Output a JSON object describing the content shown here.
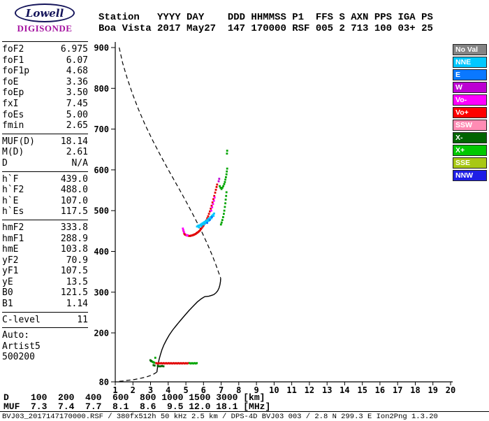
{
  "logo": {
    "name": "Lowell",
    "product": "DIGISONDE",
    "accent_color": "#a512a0"
  },
  "header": {
    "line1": "Station   YYYY DAY    DDD HHMMSS P1  FFS S AXN PPS IGA PS",
    "line2": "Boa Vista 2017 May27  147 170000 RSF 005 2 713 100 03+ 25"
  },
  "params": {
    "groups": [
      {
        "rows": [
          [
            "foF2",
            "6.975"
          ],
          [
            "foF1",
            "6.07"
          ],
          [
            "foF1p",
            "4.68"
          ],
          [
            "foE",
            "3.36"
          ],
          [
            "foEp",
            "3.50"
          ],
          [
            "fxI",
            "7.45"
          ],
          [
            "foEs",
            "5.00"
          ],
          [
            "fmin",
            "2.65"
          ]
        ]
      },
      {
        "rows": [
          [
            "MUF(D)",
            "18.14"
          ],
          [
            "M(D)",
            "2.61"
          ],
          [
            "D",
            "N/A"
          ]
        ]
      },
      {
        "rows": [
          [
            "h`F",
            "439.0"
          ],
          [
            "h`F2",
            "488.0"
          ],
          [
            "h`E",
            "107.0"
          ],
          [
            "h`Es",
            "117.5"
          ]
        ]
      },
      {
        "rows": [
          [
            "hmF2",
            "333.8"
          ],
          [
            "hmF1",
            "288.9"
          ],
          [
            "hmE",
            "103.8"
          ],
          [
            "yF2",
            "70.9"
          ],
          [
            "yF1",
            "107.5"
          ],
          [
            "yE",
            "13.5"
          ],
          [
            "B0",
            "121.5"
          ],
          [
            "B1",
            "1.14"
          ]
        ]
      },
      {
        "rows": [
          [
            "C-level",
            "11"
          ]
        ]
      },
      {
        "rows": [
          [
            "Auto:",
            ""
          ],
          [
            "Artist5",
            ""
          ],
          [
            "500200",
            ""
          ]
        ]
      }
    ]
  },
  "legend": {
    "items": [
      {
        "label": "No Val",
        "color": "#848484"
      },
      {
        "label": "NNE",
        "color": "#00c8ff"
      },
      {
        "label": "E",
        "color": "#0a78ff"
      },
      {
        "label": "W",
        "color": "#bc00d2"
      },
      {
        "label": "Vo-",
        "color": "#ff00ff"
      },
      {
        "label": "Vo+",
        "color": "#ff0000"
      },
      {
        "label": "SSW",
        "color": "#ff8cb4"
      },
      {
        "label": "X-",
        "color": "#006400"
      },
      {
        "label": "X+",
        "color": "#00c800"
      },
      {
        "label": "SSE",
        "color": "#a8c814"
      },
      {
        "label": "NNW",
        "color": "#1e1ee6"
      }
    ]
  },
  "chart_data": {
    "type": "scatter",
    "title": "Ionogram with ARTIST electron density profile",
    "x_unit": "MHz",
    "y_unit": "km",
    "xlim": [
      1,
      20
    ],
    "ylim": [
      80,
      900
    ],
    "x_ticks": [
      1,
      2,
      3,
      4,
      5,
      6,
      7,
      8,
      9,
      10,
      11,
      12,
      13,
      14,
      15,
      16,
      17,
      18,
      19,
      20
    ],
    "y_ticks": [
      80,
      200,
      300,
      400,
      500,
      600,
      700,
      800,
      900
    ],
    "grid": false,
    "legend_position": "right",
    "profile_lines": [
      {
        "name": "topside-model-dashed",
        "style": "dashed",
        "color": "#000000",
        "points": [
          [
            1.22,
            900
          ],
          [
            1.42,
            862
          ],
          [
            1.68,
            824
          ],
          [
            1.98,
            786
          ],
          [
            2.32,
            748
          ],
          [
            2.7,
            710
          ],
          [
            3.12,
            672
          ],
          [
            3.58,
            634
          ],
          [
            4.06,
            596
          ],
          [
            4.56,
            558
          ],
          [
            5.04,
            520
          ],
          [
            5.48,
            484
          ],
          [
            5.88,
            450
          ],
          [
            6.22,
            418
          ],
          [
            6.5,
            390
          ],
          [
            6.71,
            366
          ],
          [
            6.86,
            348
          ],
          [
            6.95,
            338
          ],
          [
            6.975,
            334
          ]
        ]
      },
      {
        "name": "bottomside-profile-solid",
        "style": "solid",
        "color": "#000000",
        "points": [
          [
            6.975,
            334
          ],
          [
            6.96,
            326
          ],
          [
            6.93,
            318
          ],
          [
            6.88,
            310
          ],
          [
            6.8,
            303
          ],
          [
            6.7,
            298
          ],
          [
            6.58,
            294
          ],
          [
            6.45,
            292
          ],
          [
            6.3,
            290
          ],
          [
            6.07,
            289
          ],
          [
            5.88,
            284
          ],
          [
            5.65,
            276
          ],
          [
            5.42,
            266
          ],
          [
            5.18,
            255
          ],
          [
            4.94,
            243
          ],
          [
            4.7,
            231
          ],
          [
            4.47,
            219
          ],
          [
            4.25,
            207
          ],
          [
            4.06,
            195
          ],
          [
            3.9,
            183
          ],
          [
            3.76,
            171
          ],
          [
            3.65,
            159
          ],
          [
            3.56,
            147
          ],
          [
            3.49,
            136
          ],
          [
            3.44,
            126
          ],
          [
            3.4,
            116
          ],
          [
            3.37,
            108
          ],
          [
            3.36,
            104
          ]
        ]
      },
      {
        "name": "sub-E-model-dashed",
        "style": "dashed",
        "color": "#000000",
        "points": [
          [
            3.36,
            104
          ],
          [
            3.22,
            100
          ],
          [
            3.02,
            96
          ],
          [
            2.76,
            92
          ],
          [
            2.46,
            89
          ],
          [
            2.12,
            86
          ],
          [
            1.76,
            84
          ],
          [
            1.42,
            82
          ],
          [
            1.15,
            81
          ]
        ]
      }
    ],
    "series": [
      {
        "name": "F-trace-O-mode",
        "legend": "Vo+",
        "color": "#e10000",
        "points": [
          [
            4.86,
            451
          ],
          [
            4.89,
            446
          ],
          [
            4.92,
            443
          ],
          [
            4.96,
            441
          ],
          [
            5.01,
            440
          ],
          [
            5.06,
            439
          ],
          [
            5.11,
            439
          ],
          [
            5.16,
            438
          ],
          [
            5.21,
            438
          ],
          [
            5.26,
            438
          ],
          [
            5.31,
            439
          ],
          [
            5.36,
            439
          ],
          [
            5.41,
            440
          ],
          [
            5.46,
            441
          ],
          [
            5.51,
            442
          ],
          [
            5.56,
            443
          ],
          [
            5.61,
            445
          ],
          [
            5.66,
            446
          ],
          [
            5.71,
            448
          ],
          [
            5.76,
            450
          ],
          [
            5.81,
            452
          ],
          [
            5.86,
            455
          ],
          [
            5.91,
            458
          ],
          [
            5.96,
            461
          ],
          [
            6.01,
            464
          ],
          [
            6.06,
            468
          ],
          [
            6.11,
            472
          ],
          [
            6.16,
            476
          ],
          [
            6.21,
            481
          ],
          [
            6.26,
            486
          ],
          [
            6.31,
            492
          ],
          [
            6.36,
            498
          ],
          [
            6.41,
            505
          ],
          [
            6.46,
            512
          ],
          [
            6.51,
            520
          ],
          [
            6.56,
            528
          ],
          [
            6.61,
            536
          ],
          [
            6.66,
            544
          ],
          [
            6.7,
            551
          ],
          [
            6.74,
            558
          ],
          [
            6.77,
            564
          ]
        ]
      },
      {
        "name": "F-trace-doppler-neg",
        "legend": "Vo-",
        "color": "#ff00ff",
        "points": [
          [
            4.83,
            456
          ],
          [
            4.86,
            452
          ],
          [
            4.9,
            447
          ],
          [
            5.04,
            440
          ],
          [
            5.09,
            439
          ],
          [
            6.44,
            500
          ],
          [
            6.49,
            508
          ],
          [
            6.54,
            516
          ],
          [
            6.59,
            524
          ],
          [
            6.63,
            532
          ]
        ]
      },
      {
        "name": "F-trace-X-mode",
        "legend": "X+",
        "color": "#00a500",
        "points": [
          [
            6.92,
            560
          ],
          [
            6.97,
            556
          ],
          [
            7.02,
            553
          ],
          [
            7.07,
            556
          ],
          [
            7.12,
            560
          ],
          [
            7.17,
            565
          ],
          [
            7.21,
            570
          ],
          [
            7.24,
            576
          ],
          [
            7.27,
            582
          ],
          [
            7.3,
            589
          ],
          [
            7.32,
            596
          ],
          [
            7.34,
            603
          ],
          [
            7.3,
            545
          ],
          [
            7.28,
            536
          ],
          [
            7.26,
            527
          ],
          [
            7.24,
            518
          ],
          [
            7.21,
            509
          ],
          [
            7.18,
            500
          ],
          [
            7.15,
            492
          ],
          [
            7.11,
            484
          ],
          [
            7.07,
            477
          ],
          [
            7.03,
            471
          ],
          [
            6.99,
            466
          ],
          [
            7.33,
            640
          ],
          [
            7.34,
            647
          ]
        ]
      },
      {
        "name": "F-trace-W-points",
        "legend": "W",
        "color": "#bc00d2",
        "points": [
          [
            6.86,
            572
          ],
          [
            6.89,
            578
          ]
        ]
      },
      {
        "name": "drift-NNE-points",
        "legend": "NNE",
        "color": "#00c8ff",
        "points": [
          [
            5.63,
            461
          ],
          [
            5.7,
            463
          ],
          [
            5.77,
            464
          ],
          [
            5.84,
            466
          ],
          [
            5.91,
            468
          ],
          [
            5.98,
            470
          ],
          [
            6.05,
            472
          ],
          [
            6.12,
            474
          ],
          [
            6.19,
            476
          ],
          [
            6.26,
            479
          ],
          [
            6.33,
            481
          ],
          [
            6.4,
            484
          ],
          [
            6.47,
            487
          ],
          [
            6.54,
            490
          ],
          [
            6.6,
            493
          ],
          [
            5.74,
            459
          ],
          [
            5.88,
            462
          ],
          [
            6.02,
            466
          ],
          [
            6.16,
            470
          ],
          [
            6.3,
            475
          ],
          [
            6.44,
            481
          ],
          [
            6.57,
            487
          ],
          [
            5.95,
            466
          ],
          [
            6.09,
            469
          ],
          [
            6.23,
            474
          ],
          [
            6.37,
            479
          ]
        ]
      },
      {
        "name": "drift-E-points",
        "legend": "E",
        "color": "#0a78ff",
        "points": [
          [
            6.21,
            470
          ],
          [
            6.35,
            477
          ],
          [
            6.48,
            484
          ]
        ]
      },
      {
        "name": "Es-trace-O-mode",
        "legend": "Vo+",
        "color": "#e10000",
        "points": [
          [
            3.32,
            126
          ],
          [
            3.39,
            125
          ],
          [
            3.46,
            126
          ],
          [
            3.53,
            125
          ],
          [
            3.6,
            126
          ],
          [
            3.67,
            125
          ],
          [
            3.74,
            126
          ],
          [
            3.81,
            125
          ],
          [
            3.88,
            126
          ],
          [
            3.95,
            125
          ],
          [
            4.02,
            126
          ],
          [
            4.09,
            125
          ],
          [
            4.16,
            126
          ],
          [
            4.23,
            125
          ],
          [
            4.3,
            126
          ],
          [
            4.37,
            125
          ],
          [
            4.44,
            126
          ],
          [
            4.51,
            125
          ],
          [
            4.58,
            126
          ],
          [
            4.65,
            125
          ],
          [
            4.72,
            126
          ],
          [
            4.79,
            125
          ],
          [
            4.86,
            126
          ],
          [
            4.93,
            125
          ],
          [
            5.0,
            126
          ],
          [
            5.07,
            125
          ],
          [
            5.14,
            126
          ]
        ]
      },
      {
        "name": "Es-trace-X-mode",
        "legend": "X+",
        "color": "#00a500",
        "points": [
          [
            3.06,
            131
          ],
          [
            3.11,
            129
          ],
          [
            3.16,
            128
          ],
          [
            3.21,
            127
          ],
          [
            3.27,
            139
          ],
          [
            5.21,
            126
          ],
          [
            5.28,
            125
          ],
          [
            5.35,
            126
          ],
          [
            5.42,
            125
          ],
          [
            5.49,
            126
          ],
          [
            5.56,
            125
          ],
          [
            5.62,
            126
          ]
        ]
      },
      {
        "name": "Es-trace-X-neg",
        "legend": "X-",
        "color": "#006400",
        "points": [
          [
            2.99,
            133
          ],
          [
            3.03,
            131
          ],
          [
            3.17,
            121
          ],
          [
            3.23,
            120
          ],
          [
            3.41,
            119
          ],
          [
            3.49,
            118
          ],
          [
            3.57,
            118
          ],
          [
            3.65,
            119
          ],
          [
            3.73,
            118
          ]
        ]
      }
    ]
  },
  "footer": {
    "d_line": "D    100  200  400  600  800 1000 1500 3000 [km]",
    "muf_line": "MUF  7.3  7.4  7.7  8.1  8.6  9.5 12.0 18.1 [MHz]",
    "status_line": "BVJ03_2017147170000.RSF / 380fx512h 50 kHz 2.5 km / DPS-4D BVJ03 003 / 2.8 N 299.3 E Ion2Png 1.3.20"
  }
}
